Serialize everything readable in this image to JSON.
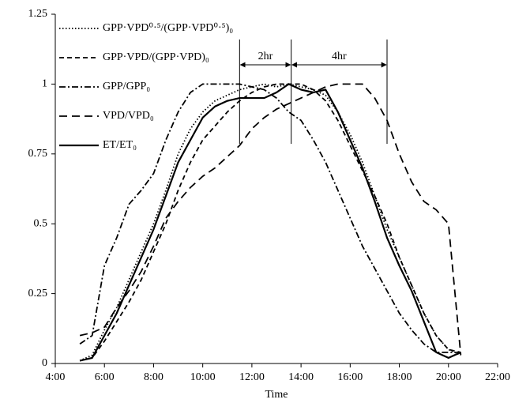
{
  "chart_data": {
    "type": "line",
    "x_label": "Time",
    "x": [
      5,
      5.5,
      6,
      6.5,
      7,
      7.5,
      8,
      8.5,
      9,
      9.5,
      10,
      10.5,
      11,
      11.5,
      12,
      12.5,
      13,
      13.5,
      14,
      14.5,
      15,
      15.5,
      16,
      16.5,
      17,
      17.5,
      18,
      18.5,
      19,
      19.5,
      20,
      20.5
    ],
    "series": [
      {
        "name": "GPP·VPD⁰·⁵/(GPP·VPD⁰·⁵)₀",
        "color": "#000000",
        "dash": "1.5,2.5",
        "values": [
          0.01,
          0.03,
          0.12,
          0.2,
          0.3,
          0.4,
          0.5,
          0.62,
          0.75,
          0.84,
          0.9,
          0.94,
          0.96,
          0.98,
          0.99,
          1.0,
          0.99,
          1.0,
          0.99,
          0.98,
          0.96,
          0.9,
          0.82,
          0.72,
          0.6,
          0.48,
          0.38,
          0.28,
          0.18,
          0.1,
          0.05,
          0.03
        ]
      },
      {
        "name": "GPP·VPD/(GPP·VPD)₀",
        "color": "#000000",
        "dash": "6,4",
        "values": [
          0.01,
          0.02,
          0.08,
          0.15,
          0.22,
          0.3,
          0.4,
          0.5,
          0.62,
          0.72,
          0.8,
          0.85,
          0.9,
          0.94,
          0.97,
          0.99,
          1.0,
          1.0,
          1.0,
          0.98,
          0.94,
          0.87,
          0.78,
          0.69,
          0.6,
          0.5,
          0.38,
          0.28,
          0.18,
          0.1,
          0.05,
          0.04
        ]
      },
      {
        "name": "GPP/GPP₀",
        "color": "#000000",
        "dash": "8,3,2,3",
        "values": [
          0.07,
          0.1,
          0.35,
          0.45,
          0.57,
          0.62,
          0.68,
          0.8,
          0.9,
          0.97,
          1.0,
          1.0,
          1.0,
          1.0,
          0.99,
          0.98,
          0.95,
          0.9,
          0.87,
          0.8,
          0.72,
          0.62,
          0.52,
          0.42,
          0.34,
          0.26,
          0.18,
          0.12,
          0.07,
          0.04,
          0.04,
          0.04
        ]
      },
      {
        "name": "VPD/VPD₀",
        "color": "#000000",
        "dash": "10,6",
        "values": [
          0.1,
          0.11,
          0.13,
          0.2,
          0.26,
          0.33,
          0.42,
          0.52,
          0.58,
          0.63,
          0.67,
          0.7,
          0.74,
          0.78,
          0.84,
          0.88,
          0.91,
          0.93,
          0.95,
          0.97,
          0.99,
          1.0,
          1.0,
          1.0,
          0.95,
          0.87,
          0.75,
          0.65,
          0.58,
          0.55,
          0.5,
          0.03
        ]
      },
      {
        "name": "ET/ET₀",
        "color": "#000000",
        "dash": "none",
        "values": [
          0.01,
          0.02,
          0.1,
          0.18,
          0.28,
          0.38,
          0.48,
          0.6,
          0.72,
          0.8,
          0.88,
          0.92,
          0.94,
          0.95,
          0.95,
          0.95,
          0.97,
          1.0,
          0.98,
          0.97,
          0.98,
          0.9,
          0.8,
          0.7,
          0.58,
          0.45,
          0.35,
          0.26,
          0.15,
          0.04,
          0.02,
          0.04
        ]
      }
    ],
    "annotations": [
      {
        "text": "2hr",
        "x": [
          11.5,
          13.6
        ]
      },
      {
        "text": "4hr",
        "x": [
          13.6,
          17.5
        ]
      }
    ],
    "xlim": [
      4,
      22
    ],
    "xticks": [
      {
        "value": 4,
        "label": "4:00"
      },
      {
        "value": 6,
        "label": "6:00"
      },
      {
        "value": 8,
        "label": "8:00"
      },
      {
        "value": 10,
        "label": "10:00"
      },
      {
        "value": 12,
        "label": "12:00"
      },
      {
        "value": 14,
        "label": "14:00"
      },
      {
        "value": 16,
        "label": "16:00"
      },
      {
        "value": 18,
        "label": "18:00"
      },
      {
        "value": 20,
        "label": "20:00"
      },
      {
        "value": 22,
        "label": "22:00"
      }
    ],
    "ylim": [
      0,
      1.25
    ],
    "yticks": [
      0,
      0.25,
      0.5,
      0.75,
      1,
      1.25
    ],
    "legend": "top-left"
  }
}
